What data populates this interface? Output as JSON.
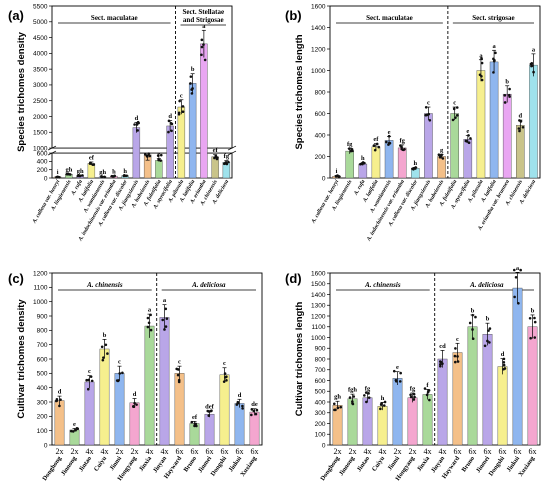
{
  "chart_data": [
    {
      "panel": "(a)",
      "type": "bar",
      "ylabel": "Species trichomes density",
      "broken_axis": true,
      "ylim_lower": [
        0,
        600
      ],
      "ylim_upper": [
        1000,
        5500
      ],
      "yticks_lower": [
        0,
        200,
        400,
        600
      ],
      "yticks_upper": [
        1000,
        1500,
        2000,
        2500,
        3000,
        3500,
        4000,
        4500,
        5000,
        5500
      ],
      "groups": [
        {
          "label": "Sect. maculatae",
          "start": 0,
          "end": 10
        },
        {
          "label": "Sect. Stellatae and Strigosae",
          "start": 11,
          "end": 17
        }
      ],
      "categories": [
        "A. callosa var. henryi",
        "A. lingienensis",
        "A. rufa",
        "A. latifolia",
        "A. wantianensis",
        "A. indochinensis var. eriantha",
        "A. callosa var. discolor",
        "A. jiangxiensis",
        "A. hubeiensis",
        "A. fuletifolia",
        "A. styracifolia",
        "A. pilosula",
        "A. latifolia",
        "A. eriantha",
        "A. chinensis",
        "A. deliciosa"
      ],
      "values": [
        25,
        90,
        55,
        350,
        30,
        45,
        55,
        1650,
        560,
        610,
        1700,
        2300,
        3050,
        4300,
        510,
        380
      ],
      "letters": [
        "i",
        "gh",
        "gh",
        "ef",
        "gh",
        "h",
        "h",
        "d",
        "e",
        "e",
        "d",
        "c",
        "b",
        "a",
        "ef",
        "fg"
      ],
      "colors": [
        "#f4c089",
        "#a9d99a",
        "#b9a6e8",
        "#f6ef8e",
        "#8fb6ef",
        "#f4a6cf",
        "#9fe2ec",
        "#b9a6e8",
        "#f4c089",
        "#a9d99a",
        "#b9a6e8",
        "#f6ef8e",
        "#8fb6ef",
        "#e9a6f2",
        "#c9c48a",
        "#9fe2ec"
      ]
    },
    {
      "panel": "(b)",
      "type": "bar",
      "ylabel": "Species trichomes length",
      "ylim": [
        0,
        1600
      ],
      "yticks": [
        0,
        200,
        400,
        600,
        800,
        1000,
        1200,
        1400,
        1600
      ],
      "groups": [
        {
          "label": "Sect. maculatae",
          "start": 0,
          "end": 8
        },
        {
          "label": "Sect. strigosae",
          "start": 9,
          "end": 15
        }
      ],
      "categories": [
        "A. callosa var. henryi",
        "A. lingienensis",
        "A. rufa",
        "A. latifolia",
        "A. wantianensis",
        "A. indochinensis var. eriantha",
        "A. callosa var. discolor",
        "A. jiangxiensis",
        "A. hubeiensis",
        "A. fuletifolia",
        "A. styracifolia",
        "A. pilosula",
        "A. latifolia",
        "A. eriantha var. brunnea",
        "A. chinensis",
        "A. deliciosa"
      ],
      "values": [
        15,
        250,
        130,
        290,
        350,
        280,
        90,
        600,
        200,
        600,
        360,
        1000,
        1080,
        780,
        490,
        1050
      ],
      "letters": [
        "i",
        "fg",
        "h",
        "ef",
        "e",
        "fg",
        "h",
        "c",
        "g",
        "c",
        "e",
        "a",
        "a",
        "b",
        "d",
        "a"
      ],
      "colors": [
        "#f4c089",
        "#a9d99a",
        "#b9a6e8",
        "#f6ef8e",
        "#8fb6ef",
        "#f4a6cf",
        "#9fe2ec",
        "#b9a6e8",
        "#f4c089",
        "#a9d99a",
        "#b9a6e8",
        "#f6ef8e",
        "#8fb6ef",
        "#e9a6f2",
        "#c9c48a",
        "#9fe2ec"
      ]
    },
    {
      "panel": "(c)",
      "type": "bar",
      "ylabel": "Cultivar trichomes density",
      "ylim": [
        0,
        1200
      ],
      "yticks": [
        0,
        100,
        200,
        300,
        400,
        500,
        600,
        700,
        800,
        900,
        1000,
        1100,
        1200
      ],
      "groups": [
        {
          "label": "A. chinensis",
          "start": 0,
          "end": 6
        },
        {
          "label": "A. deliciosa",
          "start": 7,
          "end": 12
        }
      ],
      "categories": [
        "Donghong",
        "Jinnong",
        "Jintao",
        "Cuiyu",
        "Jinmi",
        "Hongyang",
        "Jinxia",
        "Jinyan",
        "Hayward",
        "Bruno",
        "Jinmei",
        "Dongshi",
        "Jinkui",
        "Xuxiang"
      ],
      "ploidy": [
        "2x",
        "2x",
        "4x",
        "4x",
        "2x",
        "2x",
        "4x",
        "4x",
        "6x",
        "6x",
        "6x",
        "6x",
        "6x",
        "6x"
      ],
      "values": [
        310,
        105,
        440,
        670,
        500,
        295,
        830,
        890,
        500,
        150,
        215,
        490,
        290,
        230
      ],
      "letters": [
        "d",
        "e",
        "c",
        "b",
        "c",
        "d",
        "a",
        "a",
        "c",
        "ef",
        "def",
        "c",
        "d",
        "de"
      ],
      "colors": [
        "#f4c089",
        "#a9d99a",
        "#b9a6e8",
        "#f6ef8e",
        "#8fb6ef",
        "#f4a6cf",
        "#a9d99a",
        "#b9a6e8",
        "#f4c089",
        "#a9d99a",
        "#b9a6e8",
        "#f6ef8e",
        "#8fb6ef",
        "#f4a6cf"
      ]
    },
    {
      "panel": "(d)",
      "type": "bar",
      "ylabel": "Cultivar trichomes length",
      "ylim": [
        0,
        1600
      ],
      "yticks": [
        0,
        100,
        200,
        300,
        400,
        500,
        600,
        700,
        800,
        900,
        1000,
        1100,
        1200,
        1300,
        1400,
        1500,
        1600
      ],
      "groups": [
        {
          "label": "A. chinensis",
          "start": 0,
          "end": 6
        },
        {
          "label": "A. deliciosa",
          "start": 7,
          "end": 12
        }
      ],
      "categories": [
        "Donghong",
        "Jinnong",
        "Jintao",
        "Cuiyu",
        "Jinmi",
        "Hongyang",
        "Jinxia",
        "Jinyan",
        "Hayward",
        "Bruno",
        "Jinmei",
        "Dongshi",
        "Jinkui",
        "Xuxiang"
      ],
      "ploidy": [
        "2x",
        "2x",
        "4x",
        "4x",
        "2x",
        "2x",
        "4x",
        "4x",
        "6x",
        "6x",
        "6x",
        "6x",
        "6x",
        "6x"
      ],
      "values": [
        370,
        430,
        440,
        360,
        620,
        440,
        470,
        800,
        860,
        1100,
        1030,
        730,
        1460,
        1100
      ],
      "letters": [
        "gh",
        "fgh",
        "fg",
        "h",
        "e",
        "fg",
        "f",
        "cd",
        "c",
        "b",
        "b",
        "d",
        "a",
        "b"
      ],
      "colors": [
        "#f4c089",
        "#a9d99a",
        "#b9a6e8",
        "#f6ef8e",
        "#8fb6ef",
        "#f4a6cf",
        "#a9d99a",
        "#b9a6e8",
        "#f4c089",
        "#a9d99a",
        "#b9a6e8",
        "#f6ef8e",
        "#8fb6ef",
        "#f4a6cf"
      ]
    }
  ]
}
